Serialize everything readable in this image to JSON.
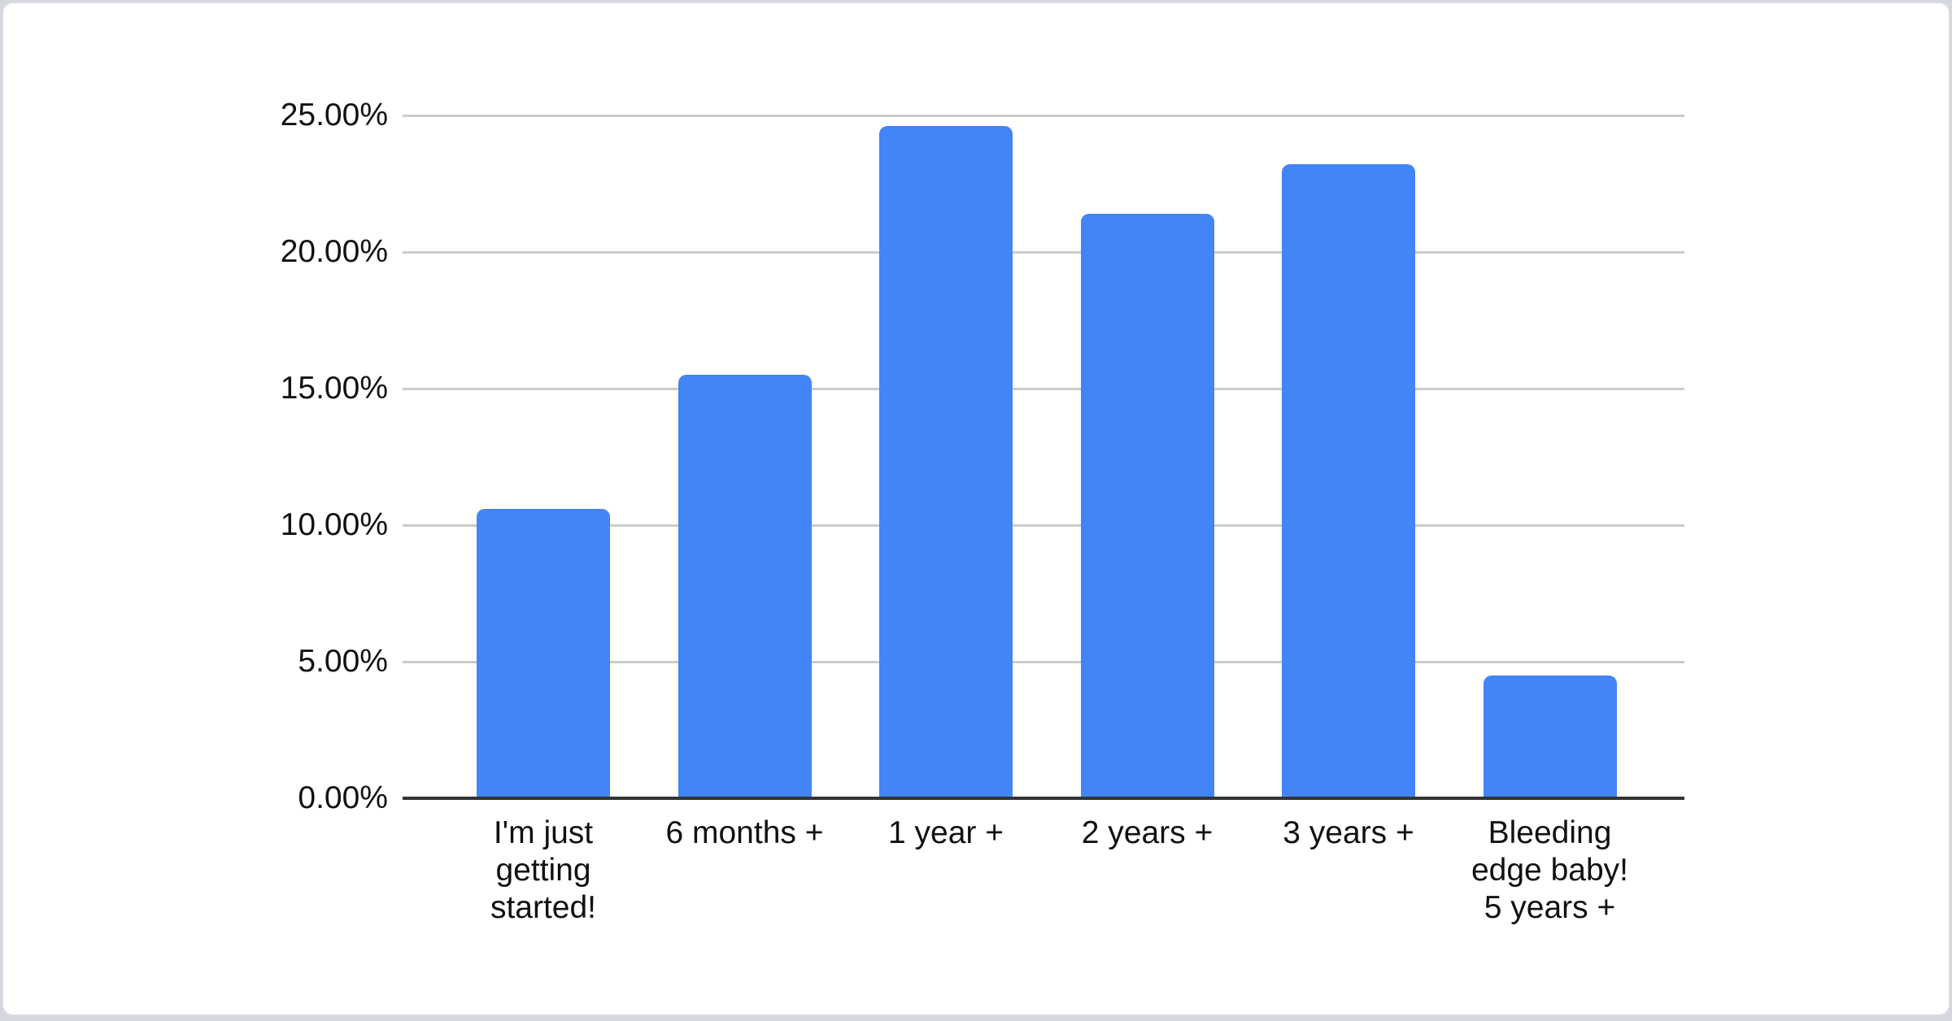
{
  "chart_data": {
    "type": "bar",
    "title": "",
    "categories": [
      "I'm just getting started!",
      "6 months +",
      "1 year +",
      "2 years +",
      "3 years +",
      "Bleeding edge baby! 5 years +"
    ],
    "category_display_lines": [
      [
        "I'm just",
        "getting",
        "started!"
      ],
      [
        "6 months +"
      ],
      [
        "1 year +"
      ],
      [
        "2 years +"
      ],
      [
        "3 years +"
      ],
      [
        "Bleeding",
        "edge baby!",
        "5 years +"
      ]
    ],
    "values": [
      10.6,
      15.5,
      24.6,
      21.4,
      23.2,
      4.5
    ],
    "value_unit": "%",
    "y_ticks": [
      {
        "value": 0,
        "label": "0.00%"
      },
      {
        "value": 5,
        "label": "5.00%"
      },
      {
        "value": 10,
        "label": "10.00%"
      },
      {
        "value": 15,
        "label": "15.00%"
      },
      {
        "value": 20,
        "label": "20.00%"
      },
      {
        "value": 25,
        "label": "25.00%"
      }
    ],
    "ylim": [
      0,
      25
    ],
    "grid": true,
    "legend": "none",
    "colors": {
      "bar_fill": "#4285f4",
      "gridline": "#cccccc",
      "axis_line": "#333333",
      "text": "#111111"
    }
  }
}
